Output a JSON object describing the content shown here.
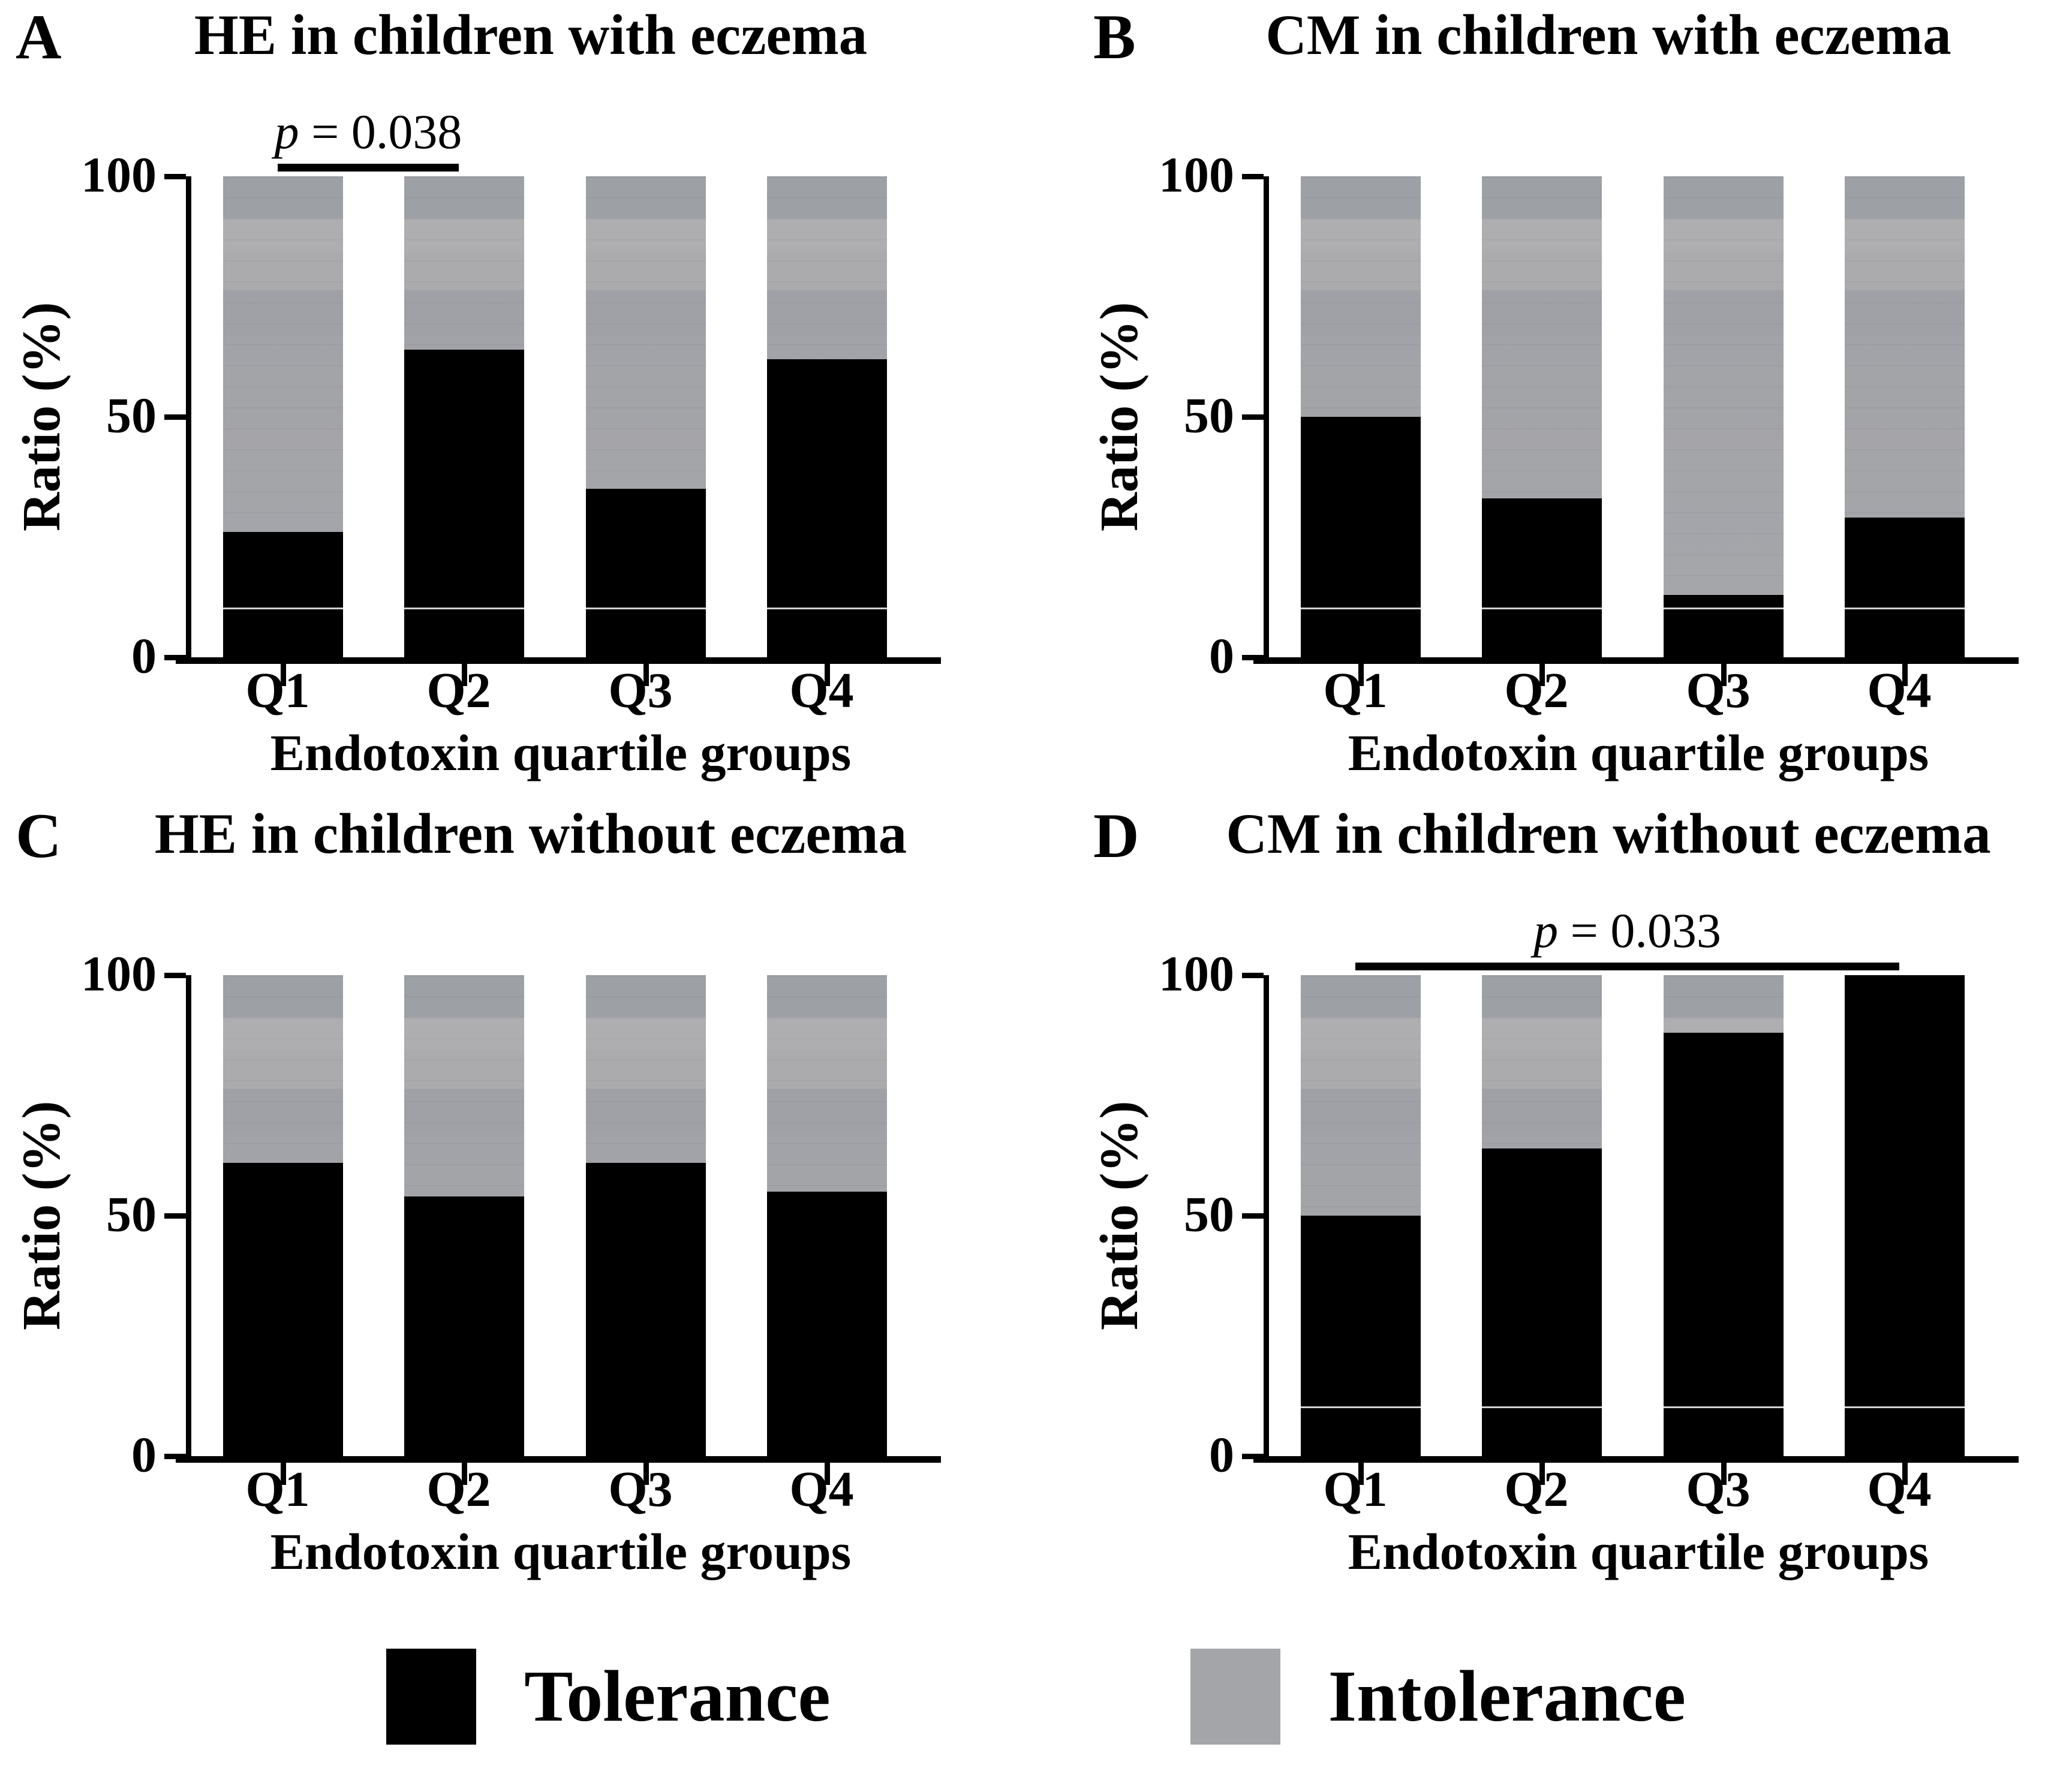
{
  "figure": {
    "y_axis_title": "Ratio (%)",
    "x_axis_title": "Endotoxin quartile groups",
    "categories": [
      "Q1",
      "Q2",
      "Q3",
      "Q4"
    ],
    "y_ticks": [
      {
        "label": "100",
        "pct": 0
      },
      {
        "label": "50",
        "pct": 50
      },
      {
        "label": "0",
        "pct": 100
      }
    ],
    "colors": {
      "tolerance": "#000000",
      "intolerance": "#a2a3a8",
      "axis": "#000000",
      "background": "#ffffff"
    }
  },
  "chart_data": [
    {
      "type": "bar",
      "stacked": "percent",
      "panel_letter": "A",
      "title": "HE in children with eczema",
      "categories": [
        "Q1",
        "Q2",
        "Q3",
        "Q4"
      ],
      "series": [
        {
          "name": "Tolerance",
          "values": [
            26,
            64,
            35,
            62
          ]
        },
        {
          "name": "Intolerance",
          "values": [
            74,
            36,
            65,
            38
          ]
        }
      ],
      "ylabel": "Ratio (%)",
      "xlabel": "Endotoxin quartile groups",
      "ylim": [
        0,
        100
      ],
      "annotation": {
        "p_label": "p",
        "value_text": " = 0.038",
        "from": 0,
        "to": 1
      },
      "artifact_white_line_pct": 10
    },
    {
      "type": "bar",
      "stacked": "percent",
      "panel_letter": "B",
      "title": "CM in children with eczema",
      "categories": [
        "Q1",
        "Q2",
        "Q3",
        "Q4"
      ],
      "series": [
        {
          "name": "Tolerance",
          "values": [
            50,
            33,
            13,
            29
          ]
        },
        {
          "name": "Intolerance",
          "values": [
            50,
            67,
            87,
            71
          ]
        }
      ],
      "ylabel": "Ratio (%)",
      "xlabel": "Endotoxin quartile groups",
      "ylim": [
        0,
        100
      ],
      "annotation": null,
      "artifact_white_line_pct": 10
    },
    {
      "type": "bar",
      "stacked": "percent",
      "panel_letter": "C",
      "title": "HE in children without eczema",
      "categories": [
        "Q1",
        "Q2",
        "Q3",
        "Q4"
      ],
      "series": [
        {
          "name": "Tolerance",
          "values": [
            61,
            54,
            61,
            55
          ]
        },
        {
          "name": "Intolerance",
          "values": [
            39,
            46,
            39,
            45
          ]
        }
      ],
      "ylabel": "Ratio (%)",
      "xlabel": "Endotoxin quartile groups",
      "ylim": [
        0,
        100
      ],
      "annotation": null,
      "artifact_white_line_pct": null
    },
    {
      "type": "bar",
      "stacked": "percent",
      "panel_letter": "D",
      "title": "CM in children without eczema",
      "categories": [
        "Q1",
        "Q2",
        "Q3",
        "Q4"
      ],
      "series": [
        {
          "name": "Tolerance",
          "values": [
            50,
            64,
            88,
            100
          ]
        },
        {
          "name": "Intolerance",
          "values": [
            50,
            36,
            12,
            0
          ]
        }
      ],
      "ylabel": "Ratio (%)",
      "xlabel": "Endotoxin quartile groups",
      "ylim": [
        0,
        100
      ],
      "annotation": {
        "p_label": "p",
        "value_text": " = 0.033",
        "from": 0,
        "to": 3
      },
      "artifact_white_line_pct": 10
    }
  ],
  "legend": {
    "items": [
      {
        "label": "Tolerance",
        "color": "#000000"
      },
      {
        "label": "Intolerance",
        "color": "#a4a5a9"
      }
    ]
  }
}
